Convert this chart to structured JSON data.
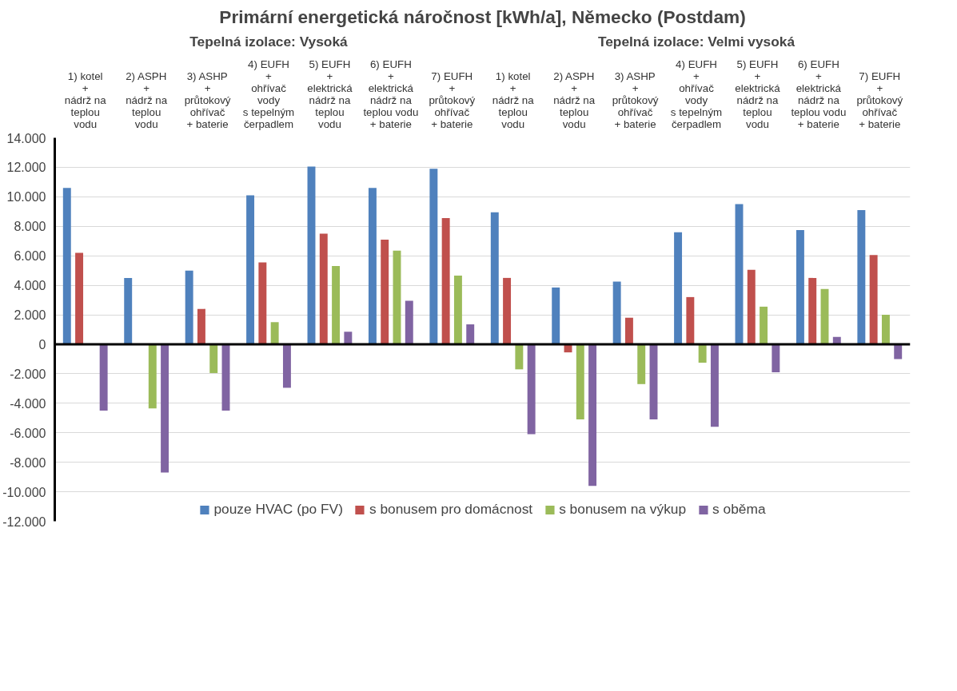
{
  "chart_data": {
    "type": "bar",
    "title": "Primární energetická náročnost [kWh/a], Německo (Postdam)",
    "annotations": [
      "Tepelná izolace: Vysoká",
      "Tepelná izolace: Velmi vysoká"
    ],
    "categories": [
      "1) kotel\n+\nnádrž na\nteplou\nvodu",
      "2) ASPH\n+\nnádrž na\nteplou\nvodu",
      "3) ASHP\n+\nprůtokový\nohřívač\n+ baterie",
      "4) EUFH\n+\nohřívač\nvody\ns tepelným\nčerpadlem",
      "5) EUFH\n+\nelektrická\nnádrž na\nteplou\nvodu",
      "6) EUFH\n+\nelektrická\nnádrž na\nteplou vodu\n+ baterie",
      "7) EUFH\n+\nprůtokový\nohřívač\n+ baterie",
      "1) kotel\n+\nnádrž na\nteplou\nvodu",
      "2) ASPH\n+\nnádrž na\nteplou\nvodu",
      "3) ASHP\n+\nprůtokový\nohřívač\n+ baterie",
      "4) EUFH\n+\nohřívač\nvody\ns tepelným\nčerpadlem",
      "5) EUFH\n+\nelektrická\nnádrž na\nteplou\nvodu",
      "6) EUFH\n+\nelektrická\nnádrž na\nteplou vodu\n+ baterie",
      "7) EUFH\n+\nprůtokový\nohřívač\n+ baterie"
    ],
    "series": [
      {
        "name": "pouze HVAC (po FV)",
        "color": "#4f81bd",
        "values": [
          10600,
          4500,
          5000,
          10100,
          12050,
          10600,
          11900,
          8950,
          3850,
          4250,
          7600,
          9500,
          7750,
          9100
        ]
      },
      {
        "name": "s bonusem pro domácnost",
        "color": "#c0504d",
        "values": [
          6200,
          null,
          2400,
          5550,
          7500,
          7100,
          8550,
          4500,
          -550,
          1800,
          3200,
          5050,
          4500,
          6050
        ]
      },
      {
        "name": "s bonusem na výkup",
        "color": "#9bbb59",
        "values": [
          null,
          -4350,
          -1950,
          1500,
          5300,
          6350,
          4650,
          -1700,
          -5100,
          -2700,
          -1250,
          2550,
          3750,
          2000
        ]
      },
      {
        "name": "s oběma",
        "color": "#8064a2",
        "values": [
          -4500,
          -8700,
          -4500,
          -2950,
          850,
          2950,
          1350,
          -6100,
          -9600,
          -5100,
          -5600,
          -1900,
          500,
          -1000
        ]
      }
    ],
    "ylim": [
      -12000,
      14000
    ],
    "yticks": [
      {
        "value": -12000,
        "label": "-12.000"
      },
      {
        "value": -10000,
        "label": "-10.000"
      },
      {
        "value": -8000,
        "label": "-8.000"
      },
      {
        "value": -6000,
        "label": "-6.000"
      },
      {
        "value": -4000,
        "label": "-4.000"
      },
      {
        "value": -2000,
        "label": "-2.000"
      },
      0,
      {
        "value": 2000,
        "label": "2.000"
      },
      {
        "value": 4000,
        "label": "4.000"
      },
      {
        "value": 6000,
        "label": "6.000"
      },
      {
        "value": 8000,
        "label": "8.000"
      },
      {
        "value": 10000,
        "label": "10.000"
      },
      {
        "value": 12000,
        "label": "12.000"
      },
      {
        "value": 14000,
        "label": "14.000"
      }
    ],
    "grid": "y",
    "legend": "bottom"
  }
}
